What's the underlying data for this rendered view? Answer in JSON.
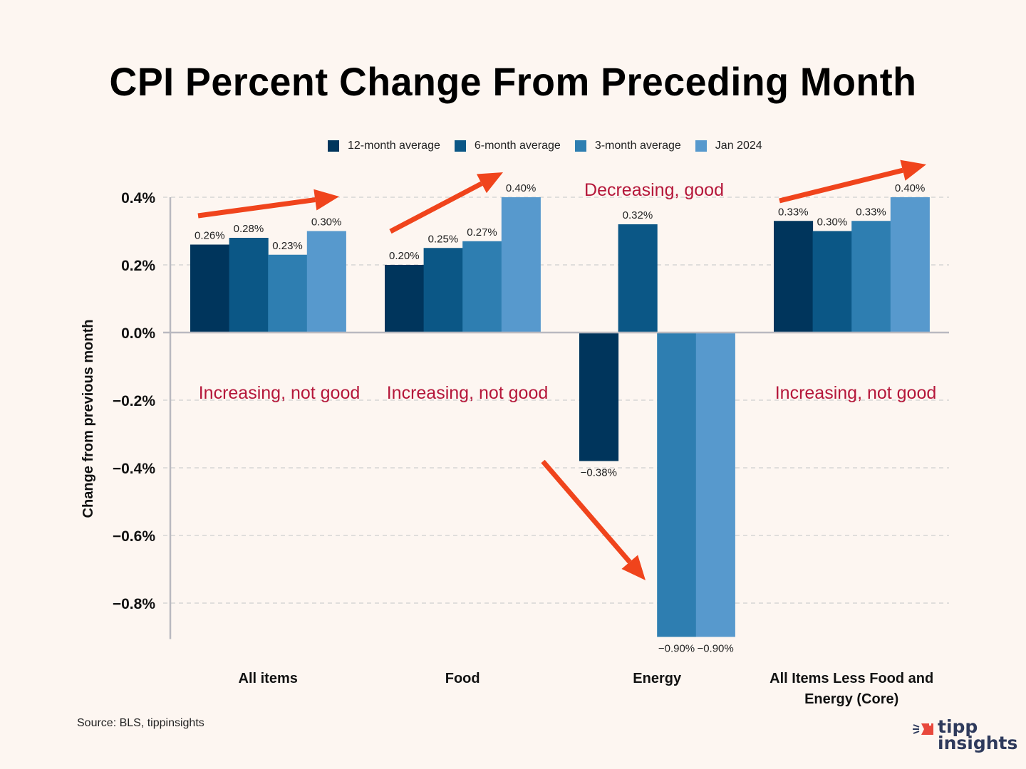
{
  "title": "CPI Percent Change From Preceding Month",
  "source": "Source: BLS, tippinsights",
  "logo": {
    "line1": "tipp",
    "line2": "insights",
    "icon": "megaphone-icon",
    "accent": "#e8483c",
    "color": "#2e3a5c"
  },
  "colors": {
    "background": "#fdf6f1",
    "annotation": "#b5173a",
    "arrow": "#f0441c",
    "axis": "#b9b9c0",
    "grid": "#cfcfcf"
  },
  "annotations": [
    {
      "text": "Increasing, not good",
      "category": "All items",
      "y_value": -0.18
    },
    {
      "text": "Increasing, not good",
      "category": "Food",
      "y_value": -0.18
    },
    {
      "text": "Decreasing, good",
      "category": "Energy",
      "y_value": 0.42
    },
    {
      "text": "Increasing, not good",
      "category": "All Items Less Food and Energy (Core)",
      "y_value": -0.18
    }
  ],
  "arrows": [
    {
      "category": "All items",
      "direction": "up"
    },
    {
      "category": "Food",
      "direction": "up"
    },
    {
      "category": "Energy",
      "direction": "down"
    },
    {
      "category": "All Items Less Food and Energy (Core)",
      "direction": "up"
    }
  ],
  "chart_data": {
    "type": "bar",
    "title": "CPI Percent Change From Preceding Month",
    "xlabel": "",
    "ylabel": "Change from previous month",
    "ylim": [
      -0.9,
      0.4
    ],
    "yticks": [
      0.4,
      0.2,
      0.0,
      -0.2,
      -0.4,
      -0.6,
      -0.8
    ],
    "ytick_labels": [
      "0.4%",
      "0.2%",
      "0.0%",
      "−0.2%",
      "−0.4%",
      "−0.6%",
      "−0.8%"
    ],
    "grid": true,
    "legend_position": "top-center",
    "categories": [
      "All items",
      "Food",
      "Energy",
      "All Items Less Food and Energy (Core)"
    ],
    "series": [
      {
        "name": "12-month average",
        "color": "#00355c",
        "values": [
          0.26,
          0.2,
          -0.38,
          0.33
        ],
        "labels": [
          "0.26%",
          "0.20%",
          "−0.38%",
          "0.33%"
        ]
      },
      {
        "name": "6-month average",
        "color": "#0b5786",
        "values": [
          0.28,
          0.25,
          0.32,
          0.3
        ],
        "labels": [
          "0.28%",
          "0.25%",
          "0.32%",
          "0.30%"
        ]
      },
      {
        "name": "3-month average",
        "color": "#2e7eb1",
        "values": [
          0.23,
          0.27,
          -0.9,
          0.33
        ],
        "labels": [
          "0.23%",
          "0.27%",
          "−0.90%",
          "0.33%"
        ]
      },
      {
        "name": "Jan 2024",
        "color": "#5799cd",
        "values": [
          0.3,
          0.4,
          -0.9,
          0.4
        ],
        "labels": [
          "0.30%",
          "0.40%",
          "−0.90%",
          "0.40%"
        ]
      }
    ]
  }
}
